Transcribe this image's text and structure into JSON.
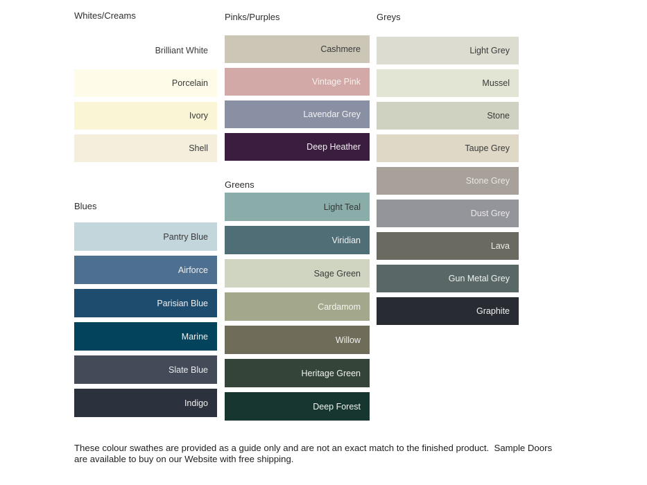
{
  "page": {
    "background": "#ffffff",
    "text_dark": "#3a3a3a",
    "text_light": "#f2f0ef"
  },
  "columns": [
    {
      "groups": [
        {
          "title": "Whites/Creams",
          "swatches": [
            {
              "name": "Brilliant White",
              "color": "#ffffff",
              "text_color": "#3a3a3a"
            },
            {
              "name": "Porcelain",
              "color": "#fefce8",
              "text_color": "#3a3a3a"
            },
            {
              "name": "Ivory",
              "color": "#faf5d5",
              "text_color": "#3a3a3a"
            },
            {
              "name": "Shell",
              "color": "#f6eedd",
              "text_color": "#3a3a3a"
            }
          ]
        },
        {
          "title": "Blues",
          "swatches": [
            {
              "name": "Pantry Blue",
              "color": "#c3d6dc",
              "text_color": "#3a3a3a"
            },
            {
              "name": "Airforce",
              "color": "#4d7090",
              "text_color": "#f2f0ef"
            },
            {
              "name": "Parisian Blue",
              "color": "#1d4c6e",
              "text_color": "#f2f0ef"
            },
            {
              "name": "Marine",
              "color": "#03445c",
              "text_color": "#f2f0ef"
            },
            {
              "name": "Slate Blue",
              "color": "#434b58",
              "text_color": "#e8eaee"
            },
            {
              "name": "Indigo",
              "color": "#2b323e",
              "text_color": "#f2f0ef"
            }
          ]
        }
      ]
    },
    {
      "groups": [
        {
          "title": "Pinks/Purples",
          "swatches": [
            {
              "name": "Cashmere",
              "color": "#cbc6b5",
              "text_color": "#3a3a3a"
            },
            {
              "name": "Vintage Pink",
              "color": "#d2a9a6",
              "text_color": "#f5f1f0"
            },
            {
              "name": "Lavendar Grey",
              "color": "#8a90a4",
              "text_color": "#f2f2f4"
            },
            {
              "name": "Deep Heather",
              "color": "#3b1d3f",
              "text_color": "#f2f0f2"
            }
          ]
        },
        {
          "title": "Greens",
          "swatches": [
            {
              "name": "Light Teal",
              "color": "#8badaa",
              "text_color": "#313638"
            },
            {
              "name": "Viridian",
              "color": "#506e76",
              "text_color": "#f1f3f3"
            },
            {
              "name": "Sage Green",
              "color": "#d0d5c2",
              "text_color": "#3a3a3a"
            },
            {
              "name": "Cardamom",
              "color": "#a3a78c",
              "text_color": "#f4f4f0"
            },
            {
              "name": "Willow",
              "color": "#6f6c59",
              "text_color": "#f2f1ed"
            },
            {
              "name": "Heritage Green",
              "color": "#344439",
              "text_color": "#f0f2f0"
            },
            {
              "name": "Deep Forest",
              "color": "#17362f",
              "text_color": "#eff3f1"
            }
          ]
        }
      ]
    },
    {
      "groups": [
        {
          "title": "Greys",
          "swatches": [
            {
              "name": "Light Grey",
              "color": "#dcdcd1",
              "text_color": "#3a3a3a"
            },
            {
              "name": "Mussel",
              "color": "#e2e4d4",
              "text_color": "#3a3a3a"
            },
            {
              "name": "Stone",
              "color": "#d0d2c1",
              "text_color": "#3a3a3a"
            },
            {
              "name": "Taupe Grey",
              "color": "#dfd8c7",
              "text_color": "#3a3a3a"
            },
            {
              "name": "Stone Grey",
              "color": "#a8a199",
              "text_color": "#eae6e1"
            },
            {
              "name": "Dust Grey",
              "color": "#94949b",
              "text_color": "#e9e9ed"
            },
            {
              "name": "Lava",
              "color": "#6b6a60",
              "text_color": "#eeede9"
            },
            {
              "name": "Gun Metal Grey",
              "color": "#596866",
              "text_color": "#eff2f1"
            },
            {
              "name": "Graphite",
              "color": "#282c32",
              "text_color": "#f0f1f2"
            }
          ]
        }
      ]
    }
  ],
  "footer": {
    "text": "These colour swathes are provided as a guide only and are not an exact match to the finished product.  Sample Doors are available to buy on our Website with free shipping."
  }
}
